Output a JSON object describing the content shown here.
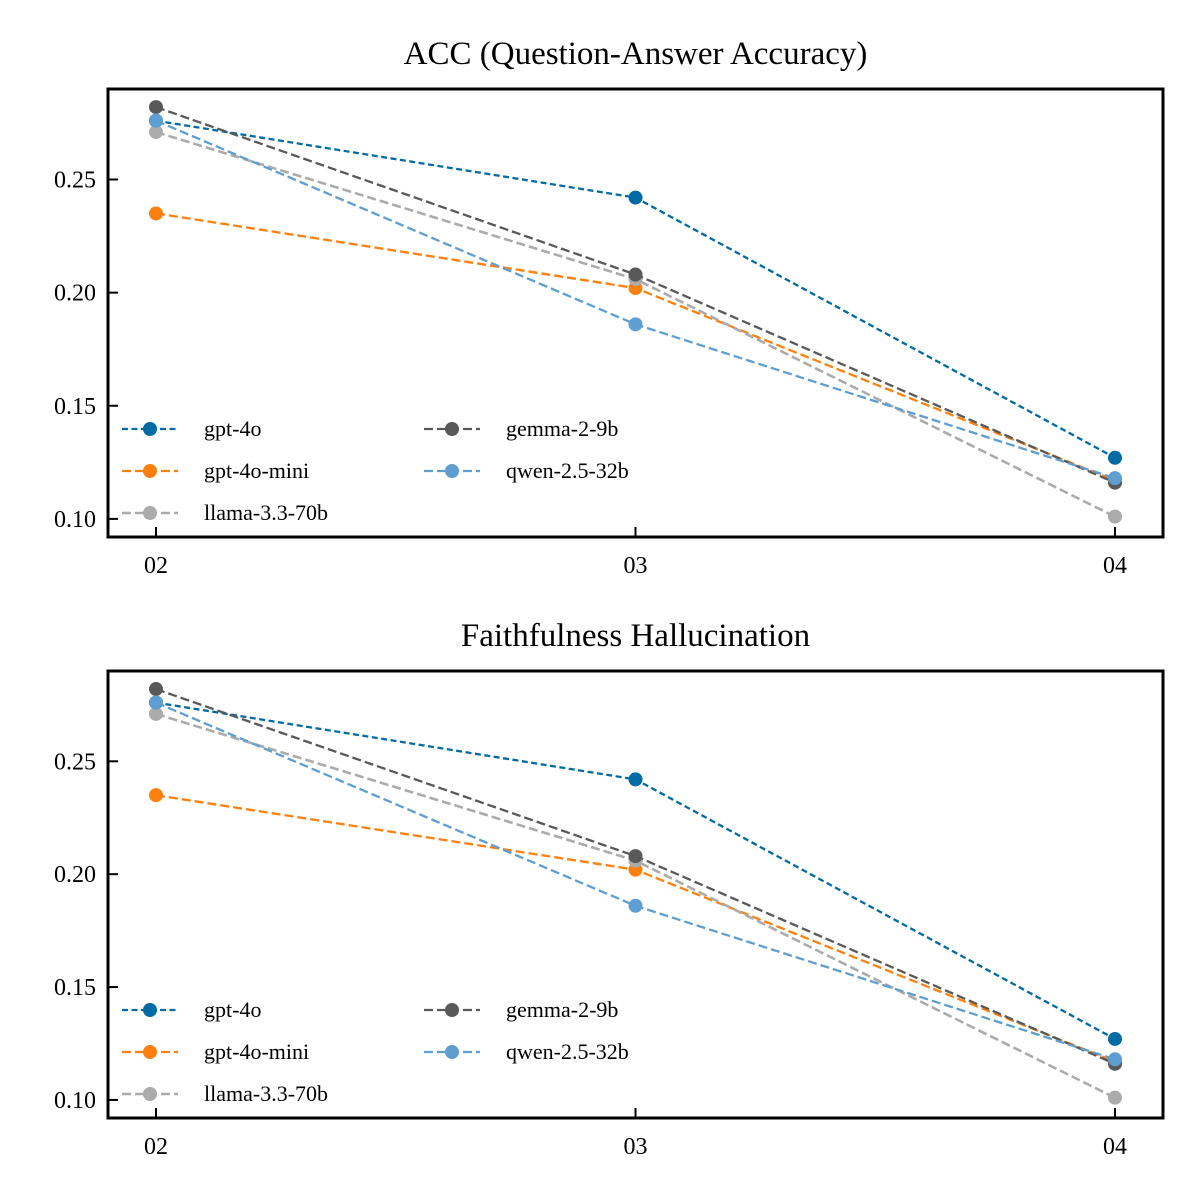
{
  "colors": {
    "gpt-4o": "#006ba4",
    "gpt-4o-mini": "#ff800e",
    "llama-3.3-70b": "#ababab",
    "gemma-2-9b": "#595959",
    "qwen-2.5-32b": "#5f9ed1"
  },
  "chart_data": [
    {
      "type": "line",
      "title": "ACC (Question-Answer Accuracy)",
      "xlabel": "",
      "ylabel": "",
      "categories": [
        "02",
        "03",
        "04"
      ],
      "yticks": [
        "0.10",
        "0.15",
        "0.20",
        "0.25"
      ],
      "ylim": [
        0.092,
        0.29
      ],
      "grid": false,
      "legend_placement": "lower-left",
      "series": [
        {
          "name": "gpt-4o",
          "values": [
            0.276,
            0.242,
            0.127
          ]
        },
        {
          "name": "gpt-4o-mini",
          "values": [
            0.235,
            0.202,
            0.117
          ]
        },
        {
          "name": "llama-3.3-70b",
          "values": [
            0.271,
            0.206,
            0.101
          ]
        },
        {
          "name": "gemma-2-9b",
          "values": [
            0.282,
            0.208,
            0.116
          ]
        },
        {
          "name": "qwen-2.5-32b",
          "values": [
            0.276,
            0.186,
            0.118
          ]
        }
      ]
    },
    {
      "type": "line",
      "title": "Faithfulness Hallucination",
      "xlabel": "",
      "ylabel": "",
      "categories": [
        "02",
        "03",
        "04"
      ],
      "yticks": [
        "0.10",
        "0.15",
        "0.20",
        "0.25"
      ],
      "ylim": [
        0.092,
        0.29
      ],
      "grid": false,
      "legend_placement": "lower-left",
      "series": [
        {
          "name": "gpt-4o",
          "values": [
            0.276,
            0.242,
            0.127
          ]
        },
        {
          "name": "gpt-4o-mini",
          "values": [
            0.235,
            0.202,
            0.117
          ]
        },
        {
          "name": "llama-3.3-70b",
          "values": [
            0.271,
            0.206,
            0.101
          ]
        },
        {
          "name": "gemma-2-9b",
          "values": [
            0.282,
            0.208,
            0.116
          ]
        },
        {
          "name": "qwen-2.5-32b",
          "values": [
            0.276,
            0.186,
            0.118
          ]
        }
      ]
    }
  ]
}
